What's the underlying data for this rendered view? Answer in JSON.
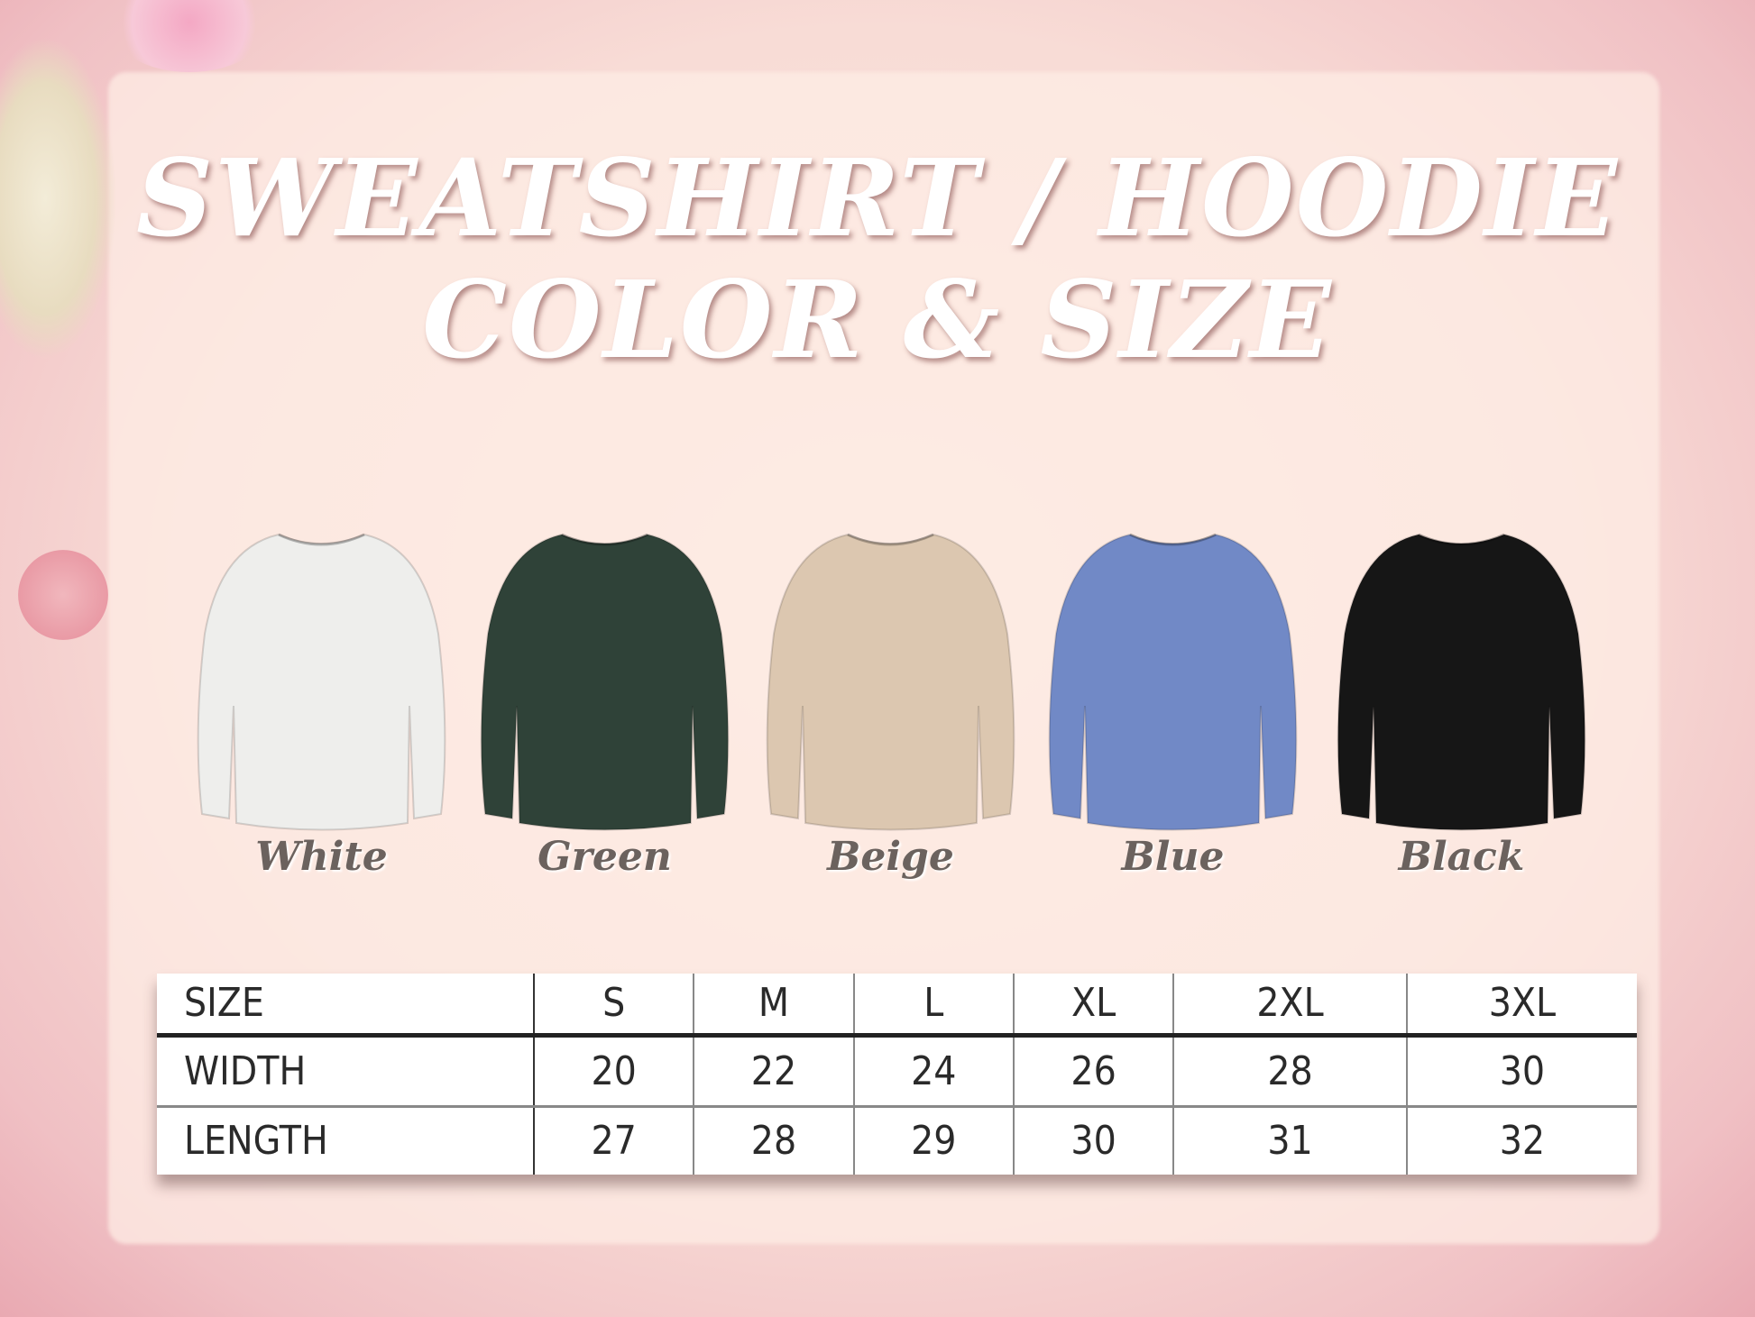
{
  "title": {
    "line1": "SWEATSHIRT / HOODIE",
    "line2": "COLOR & SIZE"
  },
  "colors": [
    {
      "name": "White",
      "hex": "#eeeeec"
    },
    {
      "name": "Green",
      "hex": "#2f4238"
    },
    {
      "name": "Beige",
      "hex": "#dcc7b0"
    },
    {
      "name": "Blue",
      "hex": "#7189c6"
    },
    {
      "name": "Black",
      "hex": "#161616"
    }
  ],
  "size_table": {
    "header": [
      "SIZE",
      "S",
      "M",
      "L",
      "XL",
      "2XL",
      "3XL"
    ],
    "rows": [
      [
        "WIDTH",
        "20",
        "22",
        "24",
        "26",
        "28",
        "30"
      ],
      [
        "LENGTH",
        "27",
        "28",
        "29",
        "30",
        "31",
        "32"
      ]
    ]
  }
}
